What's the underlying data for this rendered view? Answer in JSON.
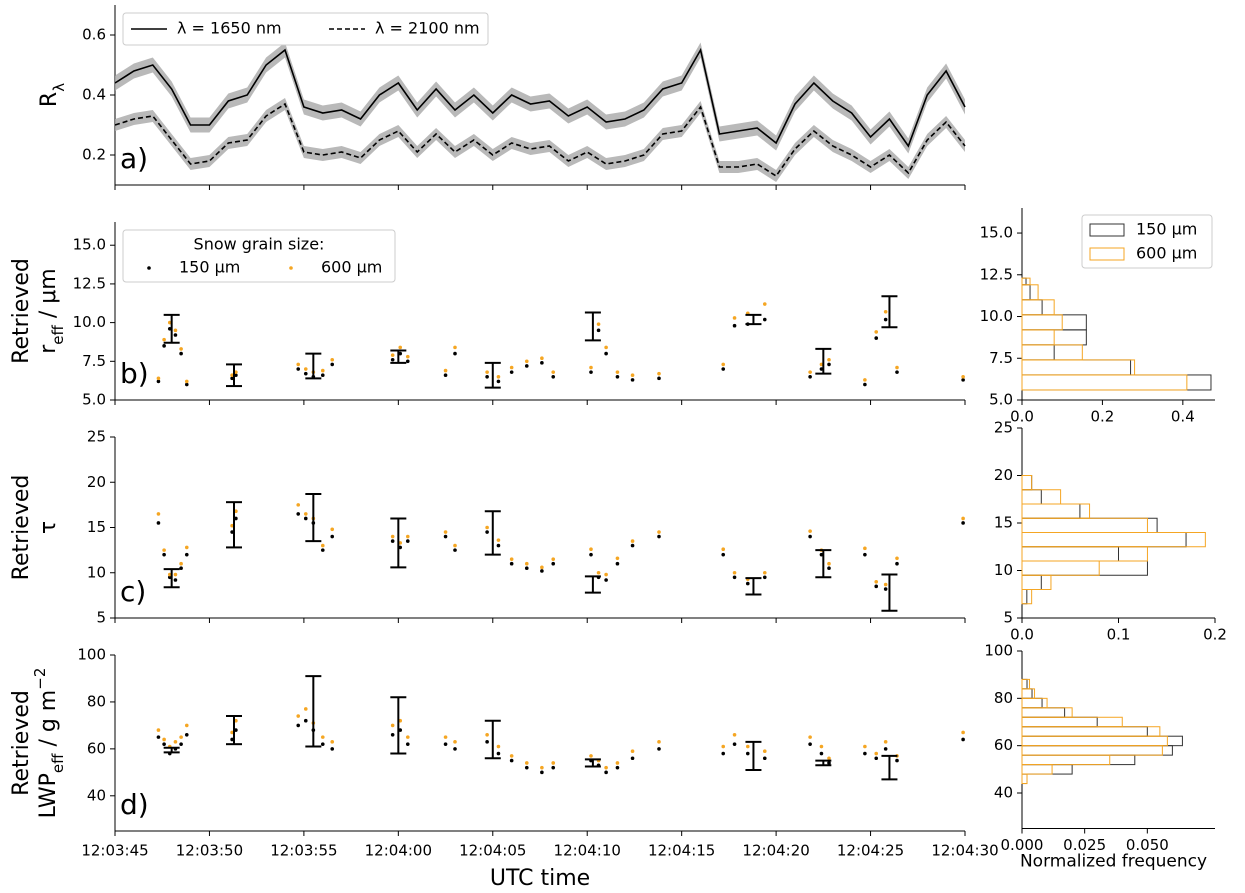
{
  "chart_data": [
    {
      "type": "line",
      "label": "a)",
      "ylabel": [
        [
          {
            "text": "R"
          },
          {
            "text": "λ",
            "style": "sub"
          }
        ]
      ],
      "xlim": [
        "12:03:45",
        "12:04:30"
      ],
      "ylim": [
        0.1,
        0.7
      ],
      "yticks": [
        {
          "value": 0.2,
          "label": "0.2"
        },
        {
          "value": 0.4,
          "label": "0.4"
        },
        {
          "value": 0.6,
          "label": "0.6"
        }
      ],
      "legend": "upper left",
      "x": [
        "12:03:45",
        "12:03:46",
        "12:03:47",
        "12:03:48",
        "12:03:49",
        "12:03:50",
        "12:03:51",
        "12:03:52",
        "12:03:53",
        "12:03:54",
        "12:03:55",
        "12:03:56",
        "12:03:57",
        "12:03:58",
        "12:03:59",
        "12:04:00",
        "12:04:01",
        "12:04:02",
        "12:04:03",
        "12:04:04",
        "12:04:05",
        "12:04:06",
        "12:04:07",
        "12:04:08",
        "12:04:09",
        "12:04:10",
        "12:04:11",
        "12:04:12",
        "12:04:13",
        "12:04:14",
        "12:04:15",
        "12:04:16",
        "12:04:17",
        "12:04:18",
        "12:04:19",
        "12:04:20",
        "12:04:21",
        "12:04:22",
        "12:04:23",
        "12:04:24",
        "12:04:25",
        "12:04:26",
        "12:04:27",
        "12:04:28",
        "12:04:29",
        "12:04:30"
      ],
      "series": [
        {
          "name": "λ = 1650 nm",
          "color": "#000000",
          "dash": "solid",
          "band_color": "#a8a8a8",
          "uncertainty": 0.025,
          "values": [
            0.44,
            0.48,
            0.5,
            0.42,
            0.3,
            0.3,
            0.38,
            0.4,
            0.5,
            0.55,
            0.36,
            0.34,
            0.35,
            0.32,
            0.4,
            0.44,
            0.35,
            0.42,
            0.35,
            0.4,
            0.34,
            0.4,
            0.37,
            0.38,
            0.33,
            0.36,
            0.31,
            0.32,
            0.35,
            0.42,
            0.44,
            0.55,
            0.27,
            0.28,
            0.29,
            0.24,
            0.37,
            0.44,
            0.38,
            0.34,
            0.26,
            0.32,
            0.23,
            0.4,
            0.48,
            0.36
          ]
        },
        {
          "name": "λ = 2100 nm",
          "color": "#000000",
          "dash": "dashed",
          "band_color": "#a8a8a8",
          "uncertainty": 0.02,
          "values": [
            0.3,
            0.32,
            0.33,
            0.25,
            0.17,
            0.18,
            0.24,
            0.25,
            0.33,
            0.37,
            0.21,
            0.2,
            0.21,
            0.19,
            0.25,
            0.28,
            0.21,
            0.27,
            0.21,
            0.25,
            0.2,
            0.24,
            0.22,
            0.23,
            0.18,
            0.21,
            0.17,
            0.18,
            0.2,
            0.27,
            0.28,
            0.36,
            0.16,
            0.16,
            0.17,
            0.13,
            0.22,
            0.28,
            0.23,
            0.2,
            0.16,
            0.2,
            0.14,
            0.25,
            0.31,
            0.23
          ]
        }
      ]
    },
    {
      "type": "scatter",
      "label": "b)",
      "ylabel": [
        [
          {
            "text": "Retrieved"
          }
        ],
        [
          {
            "text": "r"
          },
          {
            "text": "eff",
            "style": "sub"
          },
          {
            "text": " / μm"
          }
        ]
      ],
      "xlim": [
        "12:03:45",
        "12:04:30"
      ],
      "ylim": [
        5,
        16.5
      ],
      "yticks": [
        {
          "value": 5,
          "label": "5.0"
        },
        {
          "value": 7.5,
          "label": "7.5"
        },
        {
          "value": 10,
          "label": "10.0"
        },
        {
          "value": 12.5,
          "label": "12.5"
        },
        {
          "value": 15,
          "label": "15.0"
        }
      ],
      "legend": "upper left",
      "legend_title": "Snow grain size:",
      "x": [
        "12:03:47.3",
        "12:03:47.6",
        "12:03:47.9",
        "12:03:48.2",
        "12:03:48.5",
        "12:03:48.8",
        "12:03:51.2",
        "12:03:51.4",
        "12:03:54.7",
        "12:03:55.1",
        "12:03:55.5",
        "12:03:56.0",
        "12:03:56.5",
        "12:03:59.7",
        "12:04:00.1",
        "12:04:00.5",
        "12:04:02.5",
        "12:04:03.0",
        "12:04:04.7",
        "12:04:05.3",
        "12:04:06.0",
        "12:04:06.8",
        "12:04:07.6",
        "12:04:08.2",
        "12:04:10.2",
        "12:04:10.6",
        "12:04:11.0",
        "12:04:11.6",
        "12:04:12.4",
        "12:04:13.8",
        "12:04:17.2",
        "12:04:17.8",
        "12:04:18.5",
        "12:04:19.4",
        "12:04:21.8",
        "12:04:22.4",
        "12:04:22.8",
        "12:04:24.7",
        "12:04:25.3",
        "12:04:25.8",
        "12:04:26.4",
        "12:04:29.9"
      ],
      "series": [
        {
          "name": "150 μm",
          "color": "#000000",
          "values": [
            6.2,
            8.5,
            9.6,
            9.2,
            8.0,
            6.0,
            6.4,
            6.6,
            7.0,
            6.7,
            6.5,
            6.6,
            7.3,
            7.6,
            8.0,
            7.5,
            6.6,
            8.0,
            6.5,
            6.2,
            6.8,
            7.2,
            7.4,
            6.5,
            6.8,
            9.5,
            8.0,
            6.5,
            6.3,
            6.4,
            7.0,
            9.8,
            9.9,
            10.2,
            6.5,
            7.0,
            7.3,
            6.0,
            9.0,
            10.2,
            6.8,
            6.3
          ]
        },
        {
          "name": "600 μm",
          "color": "#f5a623",
          "values": [
            6.4,
            8.9,
            10.0,
            9.5,
            8.3,
            6.2,
            6.6,
            6.8,
            7.3,
            7.0,
            6.8,
            6.9,
            7.6,
            7.9,
            8.4,
            7.8,
            6.9,
            8.4,
            6.8,
            6.5,
            7.1,
            7.5,
            7.7,
            6.8,
            7.1,
            9.9,
            8.4,
            6.8,
            6.6,
            6.7,
            7.3,
            10.3,
            10.6,
            11.2,
            6.8,
            7.3,
            7.6,
            6.3,
            9.4,
            10.7,
            7.1,
            6.5
          ]
        }
      ],
      "errorbars": {
        "color": "#000000",
        "x": [
          "12:03:48.0",
          "12:03:51.3",
          "12:03:55.5",
          "12:04:00.0",
          "12:04:05.0",
          "12:04:10.3",
          "12:04:18.8",
          "12:04:22.5",
          "12:04:26.0"
        ],
        "values": [
          9.6,
          6.6,
          7.2,
          7.8,
          6.6,
          9.75,
          10.2,
          7.5,
          10.7
        ],
        "errors": [
          0.9,
          0.7,
          0.8,
          0.4,
          0.8,
          0.9,
          0.3,
          0.8,
          1.0
        ]
      }
    },
    {
      "type": "scatter",
      "label": "c)",
      "ylabel": [
        [
          {
            "text": "Retrieved"
          }
        ],
        [
          {
            "text": "τ"
          }
        ]
      ],
      "xlim": [
        "12:03:45",
        "12:04:30"
      ],
      "ylim": [
        5,
        25
      ],
      "yticks": [
        5,
        10,
        15,
        20,
        25
      ],
      "x": [
        "12:03:47.3",
        "12:03:47.6",
        "12:03:47.9",
        "12:03:48.2",
        "12:03:48.5",
        "12:03:48.8",
        "12:03:51.2",
        "12:03:51.4",
        "12:03:54.7",
        "12:03:55.1",
        "12:03:55.5",
        "12:03:56.0",
        "12:03:56.5",
        "12:03:59.7",
        "12:04:00.1",
        "12:04:00.5",
        "12:04:02.5",
        "12:04:03.0",
        "12:04:04.7",
        "12:04:05.3",
        "12:04:06.0",
        "12:04:06.8",
        "12:04:07.6",
        "12:04:08.2",
        "12:04:10.2",
        "12:04:10.6",
        "12:04:11.0",
        "12:04:11.6",
        "12:04:12.4",
        "12:04:13.8",
        "12:04:17.2",
        "12:04:17.8",
        "12:04:18.5",
        "12:04:19.4",
        "12:04:21.8",
        "12:04:22.4",
        "12:04:22.8",
        "12:04:24.7",
        "12:04:25.3",
        "12:04:25.8",
        "12:04:26.4",
        "12:04:29.9"
      ],
      "series": [
        {
          "color": "#000000",
          "values": [
            15.5,
            12,
            9.5,
            9.2,
            10.5,
            12,
            14.5,
            16,
            16.5,
            16,
            15.5,
            12.5,
            14,
            13.5,
            12.8,
            13.5,
            14,
            12.5,
            14.5,
            13,
            11,
            10.5,
            10.2,
            11,
            12,
            9.5,
            9.2,
            11,
            13,
            14,
            12,
            9.5,
            8.8,
            9.5,
            14,
            12,
            10.5,
            12,
            8.5,
            8.2,
            11,
            15.5
          ]
        },
        {
          "color": "#f5a623",
          "values": [
            16.5,
            12.5,
            9.8,
            9.8,
            11,
            12.8,
            15.2,
            16.8,
            17.5,
            16.5,
            16,
            13,
            14.8,
            14,
            13.3,
            14,
            14.5,
            13,
            15,
            13.6,
            11.5,
            11,
            10.6,
            11.5,
            12.6,
            10,
            9.8,
            11.6,
            13.5,
            14.5,
            12.6,
            10,
            9.3,
            10,
            14.6,
            12.5,
            11,
            12.7,
            9,
            8.7,
            11.6,
            16
          ]
        }
      ],
      "errorbars": {
        "color": "#000000",
        "x": [
          "12:03:48.0",
          "12:03:51.3",
          "12:03:55.5",
          "12:04:00.0",
          "12:04:05.0",
          "12:04:10.3",
          "12:04:18.8",
          "12:04:22.5",
          "12:04:26.0"
        ],
        "values": [
          9.4,
          15.3,
          16.1,
          13.3,
          14.4,
          8.7,
          8.5,
          11,
          7.8
        ],
        "errors": [
          1.0,
          2.5,
          2.6,
          2.7,
          2.4,
          0.9,
          0.9,
          1.5,
          2.0
        ]
      }
    },
    {
      "type": "scatter",
      "label": "d)",
      "ylabel": [
        [
          {
            "text": "Retrieved"
          }
        ],
        [
          {
            "text": "LWP"
          },
          {
            "text": "eff",
            "style": "sub"
          },
          {
            "text": " / g m"
          },
          {
            "text": "−2",
            "style": "super"
          }
        ]
      ],
      "xlabel": "UTC time",
      "xlim": [
        "12:03:45",
        "12:04:30"
      ],
      "xticks": [
        "12:03:45",
        "12:03:50",
        "12:03:55",
        "12:04:00",
        "12:04:05",
        "12:04:10",
        "12:04:15",
        "12:04:20",
        "12:04:25",
        "12:04:30"
      ],
      "ylim": [
        25,
        100
      ],
      "yticks": [
        40,
        60,
        80,
        100
      ],
      "x": [
        "12:03:47.3",
        "12:03:47.6",
        "12:03:47.9",
        "12:03:48.2",
        "12:03:48.5",
        "12:03:48.8",
        "12:03:51.2",
        "12:03:51.4",
        "12:03:54.7",
        "12:03:55.1",
        "12:03:55.5",
        "12:03:56.0",
        "12:03:56.5",
        "12:03:59.7",
        "12:04:00.1",
        "12:04:00.5",
        "12:04:02.5",
        "12:04:03.0",
        "12:04:04.7",
        "12:04:05.3",
        "12:04:06.0",
        "12:04:06.8",
        "12:04:07.6",
        "12:04:08.2",
        "12:04:10.2",
        "12:04:10.6",
        "12:04:11.0",
        "12:04:11.6",
        "12:04:12.4",
        "12:04:13.8",
        "12:04:17.2",
        "12:04:17.8",
        "12:04:18.5",
        "12:04:19.4",
        "12:04:21.8",
        "12:04:22.4",
        "12:04:22.8",
        "12:04:24.7",
        "12:04:25.3",
        "12:04:25.8",
        "12:04:26.4",
        "12:04:29.9"
      ],
      "series": [
        {
          "color": "#000000",
          "values": [
            65,
            62,
            58,
            60,
            62,
            66,
            64,
            68,
            70,
            72,
            68,
            62,
            60,
            66,
            68,
            62,
            62,
            60,
            63,
            58,
            55,
            52,
            50,
            52,
            55,
            53,
            50,
            52,
            56,
            60,
            58,
            62,
            58,
            56,
            62,
            58,
            54,
            58,
            56,
            60,
            55,
            64
          ]
        },
        {
          "color": "#f5a623",
          "values": [
            68,
            64,
            61,
            63,
            65,
            70,
            67,
            72,
            74,
            77,
            71,
            65,
            63,
            70,
            72,
            65,
            65,
            63,
            66,
            61,
            57,
            54,
            52,
            54,
            57,
            55,
            52,
            54,
            59,
            63,
            61,
            66,
            61,
            59,
            65,
            61,
            56,
            61,
            58,
            63,
            57,
            67
          ]
        }
      ],
      "errorbars": {
        "color": "#000000",
        "x": [
          "12:03:48.0",
          "12:03:51.3",
          "12:03:55.5",
          "12:04:00.0",
          "12:04:05.0",
          "12:04:10.3",
          "12:04:18.8",
          "12:04:22.5",
          "12:04:26.0"
        ],
        "values": [
          59.5,
          68,
          76,
          70,
          64,
          54,
          57,
          54,
          52
        ],
        "errors": [
          1,
          6,
          15,
          12,
          8,
          1.5,
          6,
          1,
          5
        ]
      }
    },
    {
      "type": "histogram",
      "orientation": "horizontal",
      "legend": "upper right",
      "ylim": [
        5,
        16.5
      ],
      "yticks": [
        {
          "value": 5,
          "label": "5.0"
        },
        {
          "value": 7.5,
          "label": "7.5"
        },
        {
          "value": 10,
          "label": "10.0"
        },
        {
          "value": 12.5,
          "label": "12.5"
        },
        {
          "value": 15,
          "label": "15.0"
        }
      ],
      "xlim": [
        0,
        0.48
      ],
      "xticks": [
        {
          "value": 0,
          "label": "0.0"
        },
        {
          "value": 0.2,
          "label": "0.2"
        },
        {
          "value": 0.4,
          "label": "0.4"
        }
      ],
      "bins": [
        5.6,
        6.5,
        7.4,
        8.3,
        9.2,
        10.1,
        11.0,
        11.9,
        12.3
      ],
      "series": [
        {
          "name": "150 μm",
          "color": "#333333",
          "counts": [
            0.47,
            0.27,
            0.08,
            0.16,
            0.16,
            0.05,
            0.02,
            0.01
          ]
        },
        {
          "name": "600 μm",
          "color": "#f5a623",
          "counts": [
            0.41,
            0.28,
            0.15,
            0.08,
            0.1,
            0.08,
            0.04,
            0.02
          ]
        }
      ]
    },
    {
      "type": "histogram",
      "orientation": "horizontal",
      "ylim": [
        5,
        25
      ],
      "yticks": [
        5,
        10,
        15,
        20,
        25
      ],
      "xlim": [
        0,
        0.2
      ],
      "xticks": [
        {
          "value": 0,
          "label": "0.0"
        },
        {
          "value": 0.1,
          "label": "0.1"
        },
        {
          "value": 0.2,
          "label": "0.2"
        }
      ],
      "bins": [
        6.5,
        8,
        9.5,
        11,
        12.5,
        14,
        15.5,
        17,
        18.5,
        20
      ],
      "series": [
        {
          "color": "#333333",
          "counts": [
            0.005,
            0.02,
            0.13,
            0.1,
            0.17,
            0.14,
            0.06,
            0.02,
            0.01
          ]
        },
        {
          "color": "#f5a623",
          "counts": [
            0.01,
            0.03,
            0.08,
            0.13,
            0.19,
            0.13,
            0.07,
            0.04,
            0.01
          ]
        }
      ]
    },
    {
      "type": "histogram",
      "orientation": "horizontal",
      "xlabel": "Normalized frequency",
      "ylim": [
        25,
        100
      ],
      "yticks": [
        40,
        60,
        80,
        100
      ],
      "xlim": [
        0,
        0.077
      ],
      "xticks": [
        {
          "value": 0,
          "label": "0.000"
        },
        {
          "value": 0.025,
          "label": "0.025"
        },
        {
          "value": 0.05,
          "label": "0.050"
        }
      ],
      "bins": [
        44,
        48,
        52,
        56,
        60,
        64,
        68,
        72,
        76,
        80,
        84,
        88
      ],
      "series": [
        {
          "color": "#333333",
          "counts": [
            0.002,
            0.02,
            0.045,
            0.06,
            0.064,
            0.05,
            0.03,
            0.017,
            0.008,
            0.004,
            0.002
          ]
        },
        {
          "color": "#f5a623",
          "counts": [
            0.002,
            0.012,
            0.035,
            0.056,
            0.058,
            0.055,
            0.04,
            0.02,
            0.01,
            0.005,
            0.003
          ]
        }
      ]
    }
  ]
}
